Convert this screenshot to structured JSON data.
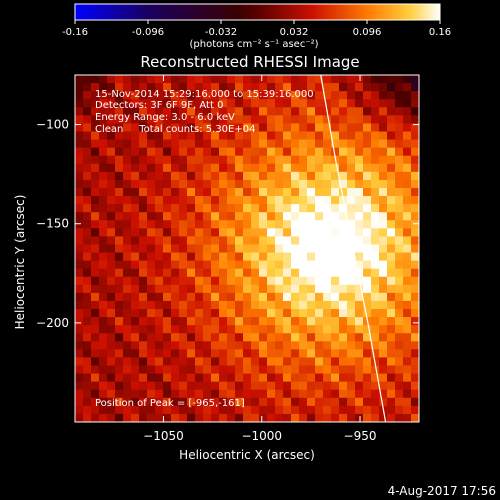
{
  "colorbar": {
    "ticks": [
      "-0.16",
      "-0.096",
      "-0.032",
      "0.032",
      "0.096",
      "0.16"
    ],
    "unit_label": "(photons cm⁻² s⁻¹ asec⁻²)",
    "range": [
      -0.16,
      0.16
    ]
  },
  "title": "Reconstructed RHESSI Image",
  "info": {
    "line1": "15-Nov-2014 15:29:16.000 to 15:39:16.000",
    "line2": "Detectors: 3F 6F 9F, Att 0",
    "line3": "Energy Range: 3.0 - 6.0 keV",
    "line4": "Clean     Total counts: 5.30E+04",
    "peak": "Position of Peak = [-965,-161]"
  },
  "footer_date": "4-Aug-2017 17:56",
  "chart_data": {
    "type": "heatmap",
    "title": "Reconstructed RHESSI Image",
    "xlabel": "Heliocentric X (arcsec)",
    "ylabel": "Heliocentric Y (arcsec)",
    "xlim": [
      -1095,
      -920
    ],
    "ylim": [
      -250,
      -75
    ],
    "x_ticks": [
      -1050,
      -1000,
      -950
    ],
    "y_ticks": [
      -100,
      -150,
      -200
    ],
    "x_tick_labels": [
      "−1050",
      "−1000",
      "−950"
    ],
    "y_tick_labels": [
      "−100",
      "−150",
      "−200"
    ],
    "peak": [
      -965,
      -161
    ],
    "limb": [
      [
        -970,
        -75
      ],
      [
        -962,
        -120
      ],
      [
        -953,
        -165
      ],
      [
        -946,
        -200
      ],
      [
        -937,
        -250
      ]
    ],
    "colormap": [
      "#0000ff",
      "#000000",
      "#ff0000",
      "#ffaa00",
      "#ffffff"
    ],
    "limb_color": "#ffffff"
  }
}
